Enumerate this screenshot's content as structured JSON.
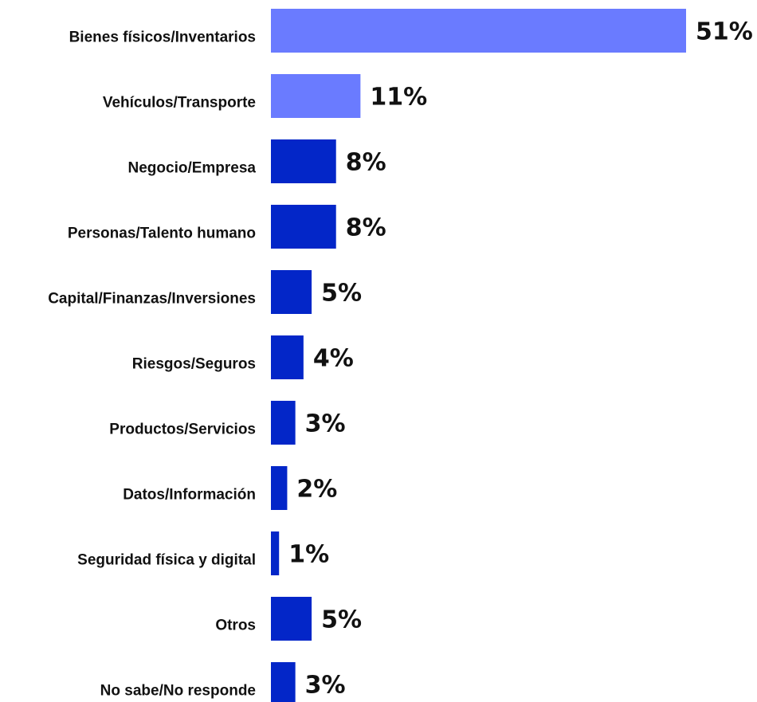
{
  "chart_data": {
    "type": "bar",
    "orientation": "horizontal",
    "title": "",
    "xlabel": "",
    "ylabel": "",
    "xlim": [
      0,
      51
    ],
    "grid": false,
    "legend": "none",
    "categories": [
      "Bienes físicos/Inventarios",
      "Vehículos/Transporte",
      "Negocio/Empresa",
      "Personas/Talento humano",
      "Capital/Finanzas/Inversiones",
      "Riesgos/Seguros",
      "Productos/Servicios",
      "Datos/Información",
      "Seguridad física y digital",
      "Otros",
      "No sabe/No responde"
    ],
    "values": [
      51,
      11,
      8,
      8,
      5,
      4,
      3,
      2,
      1,
      5,
      3
    ],
    "value_labels": [
      "51%",
      "11%",
      "8%",
      "8%",
      "5%",
      "4%",
      "3%",
      "2%",
      "1%",
      "5%",
      "3%"
    ],
    "bar_colors": [
      "#6a7bff",
      "#6a7bff",
      "#0326c8",
      "#0326c8",
      "#0326c8",
      "#0326c8",
      "#0326c8",
      "#0326c8",
      "#0326c8",
      "#0326c8",
      "#0326c8"
    ]
  }
}
